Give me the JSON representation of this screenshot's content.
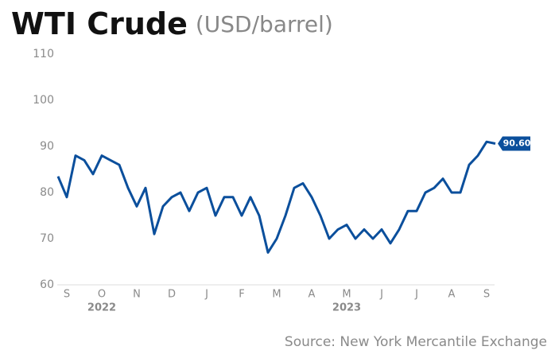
{
  "chart_data": {
    "type": "line",
    "title": "WTI Crude",
    "subtitle": "(USD/barrel)",
    "source": "Source: New York Mercantile Exchange",
    "categories": [
      null,
      "S",
      null,
      null,
      null,
      "O",
      null,
      null,
      null,
      "N",
      null,
      null,
      null,
      "D",
      null,
      null,
      null,
      "J",
      null,
      null,
      null,
      "F",
      null,
      null,
      null,
      "M",
      null,
      null,
      null,
      "A",
      null,
      null,
      null,
      "M",
      null,
      null,
      null,
      "J",
      null,
      null,
      null,
      "J",
      null,
      null,
      null,
      "A",
      null,
      null,
      null,
      "S",
      null
    ],
    "years": [
      "2022",
      "2023"
    ],
    "series": [
      {
        "name": "WTI Crude",
        "color": "#0b4f9c",
        "values": [
          83.5,
          79,
          88,
          87,
          84,
          88,
          87,
          86,
          81,
          77,
          81,
          71,
          77,
          79,
          80,
          76,
          80,
          81,
          75,
          79,
          79,
          75,
          79,
          75,
          67,
          70,
          75,
          81,
          82,
          79,
          75,
          70,
          72,
          73,
          70,
          72,
          70,
          72,
          69,
          72,
          76,
          76,
          80,
          81,
          83,
          80,
          80,
          86,
          88,
          91,
          90.6
        ],
        "value_labels": [
          null,
          null,
          null,
          null,
          null,
          null,
          null,
          null,
          null,
          null,
          null,
          null,
          null,
          null,
          null,
          null,
          null,
          null,
          null,
          null,
          null,
          null,
          null,
          null,
          null,
          null,
          null,
          null,
          null,
          null,
          null,
          null,
          null,
          null,
          null,
          null,
          null,
          null,
          null,
          null,
          null,
          null,
          null,
          null,
          null,
          null,
          null,
          null,
          null,
          null,
          "90.60"
        ]
      }
    ],
    "ylim": [
      60,
      110
    ],
    "yticks": [
      60,
      70,
      80,
      90,
      100,
      110
    ],
    "grid": false
  }
}
